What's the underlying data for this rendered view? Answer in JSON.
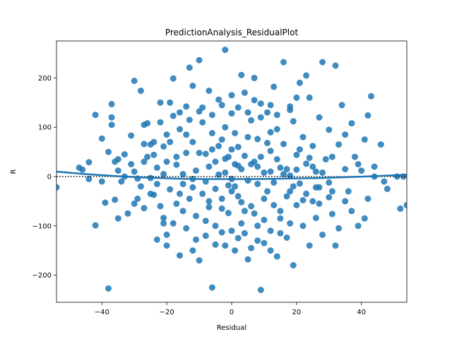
{
  "chart_data": {
    "type": "scatter",
    "title": "PredictionAnalysis_ResidualPlot",
    "xlabel": "Residual",
    "ylabel": "R",
    "xlim": [
      -54,
      54
    ],
    "ylim": [
      -255,
      275
    ],
    "xticks": [
      -40,
      -20,
      0,
      20,
      40
    ],
    "yticks": [
      -200,
      -100,
      0,
      100,
      200
    ],
    "xtick_labels": [
      "−40",
      "−20",
      "0",
      "20",
      "40"
    ],
    "ytick_labels": [
      "−200",
      "−100",
      "0",
      "100",
      "200"
    ],
    "grid": false,
    "legend": "none",
    "colors": {
      "points": "#1f77b4",
      "fit_line": "#1f77b4",
      "zero_line": "#000000"
    },
    "reference_line": {
      "y": 0,
      "style": "dotted"
    },
    "fit_curve": {
      "x": [
        -54,
        -45,
        -36,
        -27,
        -18,
        -9,
        0,
        9,
        18,
        27,
        36,
        45,
        54
      ],
      "y": [
        10,
        5,
        1,
        -2,
        -4,
        -5,
        -5,
        -5,
        -4,
        -3,
        -1,
        1,
        4
      ]
    },
    "points": [
      [
        -54,
        -22
      ],
      [
        -46,
        14
      ],
      [
        -44,
        29
      ],
      [
        -42,
        125
      ],
      [
        -42,
        -99
      ],
      [
        -40,
        77
      ],
      [
        -39,
        -53
      ],
      [
        -38,
        -227
      ],
      [
        -37,
        105
      ],
      [
        -37,
        147
      ],
      [
        -37,
        120
      ],
      [
        -36,
        30
      ],
      [
        -36,
        -47
      ],
      [
        -35,
        35
      ],
      [
        -35,
        12
      ],
      [
        -33,
        0
      ],
      [
        -32,
        -75
      ],
      [
        -31,
        83
      ],
      [
        -30,
        194
      ],
      [
        -29,
        -4
      ],
      [
        -28,
        174
      ],
      [
        -27,
        105
      ],
      [
        -27,
        66
      ],
      [
        -27,
        -64
      ],
      [
        -26,
        108
      ],
      [
        -25,
        -3
      ],
      [
        -25,
        -35
      ],
      [
        -24,
        44
      ],
      [
        -24,
        -37
      ],
      [
        -23,
        18
      ],
      [
        -23,
        -128
      ],
      [
        -22,
        150
      ],
      [
        -21,
        61
      ],
      [
        -21,
        -84
      ],
      [
        -20,
        85
      ],
      [
        -20,
        30
      ],
      [
        -20,
        -118
      ],
      [
        -19,
        -26
      ],
      [
        -18,
        199
      ],
      [
        -18,
        123
      ],
      [
        -17,
        24
      ],
      [
        -17,
        -55
      ],
      [
        -16,
        96
      ],
      [
        -16,
        -160
      ],
      [
        -15,
        5
      ],
      [
        -14,
        142
      ],
      [
        -14,
        48
      ],
      [
        -14,
        -105
      ],
      [
        -13,
        221
      ],
      [
        -12,
        184
      ],
      [
        -12,
        70
      ],
      [
        -12,
        -22
      ],
      [
        -11,
        -80
      ],
      [
        -11,
        -128
      ],
      [
        -10,
        236
      ],
      [
        -10,
        132
      ],
      [
        -10,
        -170
      ],
      [
        -9,
        110
      ],
      [
        -8,
        46
      ],
      [
        -8,
        -10
      ],
      [
        -8,
        -90
      ],
      [
        -7,
        174
      ],
      [
        -7,
        20
      ],
      [
        -7,
        -62
      ],
      [
        -6,
        88
      ],
      [
        -6,
        -225
      ],
      [
        -5,
        -138
      ],
      [
        -4,
        156
      ],
      [
        -4,
        62
      ],
      [
        -4,
        4
      ],
      [
        -3,
        -45
      ],
      [
        -3,
        -113
      ],
      [
        -2,
        257
      ],
      [
        -2,
        100
      ],
      [
        -2,
        36
      ],
      [
        -1,
        -18
      ],
      [
        -1,
        -74
      ],
      [
        0,
        128
      ],
      [
        0,
        55
      ],
      [
        0,
        -5
      ],
      [
        1,
        -150
      ],
      [
        1,
        88
      ],
      [
        2,
        22
      ],
      [
        2,
        -40
      ],
      [
        3,
        206
      ],
      [
        3,
        -95
      ],
      [
        4,
        170
      ],
      [
        4,
        42
      ],
      [
        5,
        -8
      ],
      [
        5,
        -168
      ],
      [
        6,
        114
      ],
      [
        6,
        -60
      ],
      [
        7,
        200
      ],
      [
        7,
        30
      ],
      [
        8,
        -130
      ],
      [
        8,
        76
      ],
      [
        9,
        -230
      ],
      [
        9,
        148
      ],
      [
        10,
        8
      ],
      [
        10,
        -88
      ],
      [
        11,
        130
      ],
      [
        11,
        -30
      ],
      [
        12,
        52
      ],
      [
        12,
        -110
      ],
      [
        13,
        182
      ],
      [
        13,
        -12
      ],
      [
        14,
        96
      ],
      [
        14,
        -162
      ],
      [
        15,
        18
      ],
      [
        15,
        -70
      ],
      [
        16,
        232
      ],
      [
        16,
        66
      ],
      [
        17,
        -40
      ],
      [
        17,
        -124
      ],
      [
        18,
        142
      ],
      [
        18,
        2
      ],
      [
        19,
        -180
      ],
      [
        19,
        112
      ],
      [
        20,
        44
      ],
      [
        20,
        -58
      ],
      [
        21,
        190
      ],
      [
        21,
        -14
      ],
      [
        22,
        -100
      ],
      [
        22,
        80
      ],
      [
        23,
        205
      ],
      [
        23,
        26
      ],
      [
        24,
        -140
      ],
      [
        24,
        160
      ],
      [
        25,
        -50
      ],
      [
        25,
        62
      ],
      [
        26,
        10
      ],
      [
        26,
        -84
      ],
      [
        27,
        120
      ],
      [
        27,
        -22
      ],
      [
        28,
        232
      ],
      [
        28,
        -118
      ],
      [
        30,
        95
      ],
      [
        30,
        -12
      ],
      [
        31,
        40
      ],
      [
        31,
        -76
      ],
      [
        32,
        225
      ],
      [
        32,
        -140
      ],
      [
        33,
        65
      ],
      [
        33,
        -105
      ],
      [
        34,
        145
      ],
      [
        35,
        15
      ],
      [
        35,
        -50
      ],
      [
        36,
        -30
      ],
      [
        37,
        108
      ],
      [
        38,
        40
      ],
      [
        39,
        -100
      ],
      [
        40,
        12
      ],
      [
        41,
        75
      ],
      [
        41,
        -85
      ],
      [
        42,
        124
      ],
      [
        43,
        163
      ],
      [
        44,
        0
      ],
      [
        46,
        65
      ],
      [
        47,
        -10
      ],
      [
        51,
        0
      ],
      [
        52,
        -65
      ],
      [
        53,
        0
      ],
      [
        54,
        -58
      ],
      [
        -30,
        10
      ],
      [
        -28,
        -20
      ],
      [
        -26,
        40
      ],
      [
        -22,
        -60
      ],
      [
        -19,
        70
      ],
      [
        -15,
        -15
      ],
      [
        -13,
        -45
      ],
      [
        -11,
        12
      ],
      [
        -9,
        -35
      ],
      [
        -6,
        55
      ],
      [
        -5,
        -25
      ],
      [
        -3,
        75
      ],
      [
        -1,
        40
      ],
      [
        1,
        -20
      ],
      [
        2,
        60
      ],
      [
        3,
        15
      ],
      [
        4,
        -70
      ],
      [
        6,
        25
      ],
      [
        8,
        -15
      ],
      [
        9,
        40
      ],
      [
        11,
        68
      ],
      [
        12,
        10
      ],
      [
        14,
        35
      ],
      [
        15,
        -85
      ],
      [
        17,
        15
      ],
      [
        19,
        -20
      ],
      [
        21,
        55
      ],
      [
        23,
        -35
      ],
      [
        25,
        20
      ],
      [
        27,
        -55
      ],
      [
        29,
        35
      ],
      [
        31,
        -30
      ],
      [
        -34,
        -10
      ],
      [
        -31,
        25
      ],
      [
        -29,
        -45
      ],
      [
        -25,
        65
      ],
      [
        -23,
        -15
      ],
      [
        -21,
        5
      ],
      [
        -17,
        40
      ],
      [
        -16,
        -35
      ],
      [
        -14,
        85
      ],
      [
        -12,
        -5
      ],
      [
        -10,
        48
      ],
      [
        -7,
        -50
      ],
      [
        -5,
        30
      ],
      [
        -3,
        -65
      ],
      [
        -2,
        8
      ],
      [
        0,
        -30
      ],
      [
        1,
        25
      ],
      [
        3,
        -52
      ],
      [
        5,
        80
      ],
      [
        7,
        -75
      ],
      [
        8,
        20
      ],
      [
        10,
        -45
      ],
      [
        12,
        90
      ],
      [
        13,
        -58
      ],
      [
        16,
        5
      ],
      [
        18,
        -30
      ],
      [
        20,
        14
      ],
      [
        22,
        -48
      ],
      [
        24,
        38
      ],
      [
        26,
        -22
      ],
      [
        28,
        8
      ],
      [
        30,
        -42
      ],
      [
        -20,
        -140
      ],
      [
        -18,
        -95
      ],
      [
        -15,
        -70
      ],
      [
        -12,
        -150
      ],
      [
        -8,
        -120
      ],
      [
        -5,
        -100
      ],
      [
        -2,
        -140
      ],
      [
        0,
        -110
      ],
      [
        2,
        -125
      ],
      [
        4,
        -115
      ],
      [
        6,
        -145
      ],
      [
        8,
        -100
      ],
      [
        10,
        -135
      ],
      [
        12,
        -150
      ],
      [
        15,
        -115
      ],
      [
        18,
        -95
      ],
      [
        -22,
        110
      ],
      [
        -19,
        150
      ],
      [
        -16,
        130
      ],
      [
        -13,
        115
      ],
      [
        -9,
        140
      ],
      [
        -6,
        125
      ],
      [
        -3,
        145
      ],
      [
        0,
        165
      ],
      [
        2,
        140
      ],
      [
        5,
        130
      ],
      [
        7,
        155
      ],
      [
        9,
        120
      ],
      [
        12,
        145
      ],
      [
        14,
        125
      ],
      [
        18,
        135
      ],
      [
        20,
        160
      ],
      [
        -40,
        -10
      ],
      [
        -38,
        50
      ],
      [
        -35,
        -85
      ],
      [
        -33,
        45
      ],
      [
        -30,
        -55
      ],
      [
        -27,
        30
      ],
      [
        -24,
        70
      ],
      [
        -21,
        -95
      ],
      [
        35,
        85
      ],
      [
        37,
        -70
      ],
      [
        39,
        25
      ],
      [
        42,
        -45
      ],
      [
        44,
        20
      ],
      [
        48,
        -25
      ],
      [
        -44,
        -5
      ],
      [
        -47,
        18
      ]
    ]
  }
}
